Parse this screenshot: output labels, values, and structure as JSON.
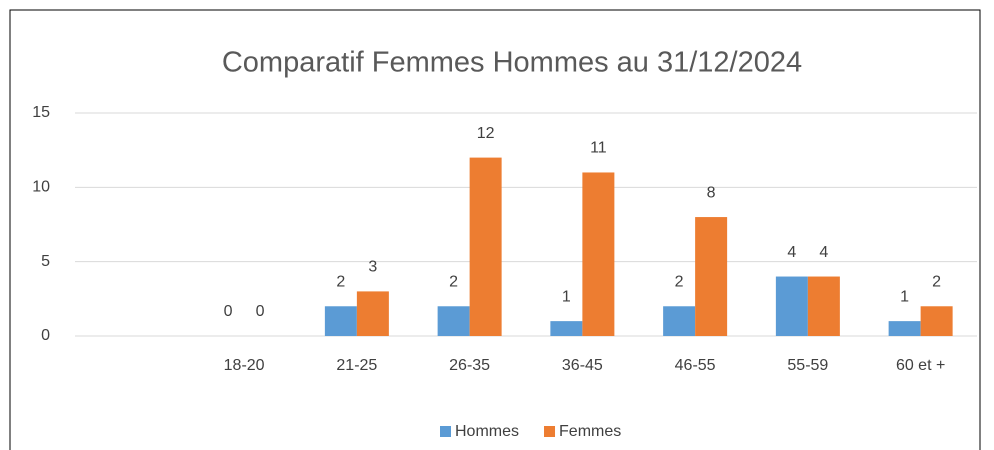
{
  "chart_data": {
    "type": "bar",
    "title": "Comparatif Femmes Hommes au 31/12/2024",
    "categories": [
      null,
      "18-20",
      "21-25",
      "26-35",
      "36-45",
      "46-55",
      "55-59",
      "60 et +"
    ],
    "series": [
      {
        "name": "Hommes",
        "color": "#5b9bd5",
        "values": [
          null,
          0,
          2,
          2,
          1,
          2,
          4,
          1
        ]
      },
      {
        "name": "Femmes",
        "color": "#ed7d31",
        "values": [
          null,
          0,
          3,
          12,
          11,
          8,
          4,
          2
        ]
      }
    ],
    "ylim": [
      0,
      15
    ],
    "yticks": [
      0,
      5,
      10,
      15
    ],
    "grid": true,
    "legend": "bottom"
  }
}
